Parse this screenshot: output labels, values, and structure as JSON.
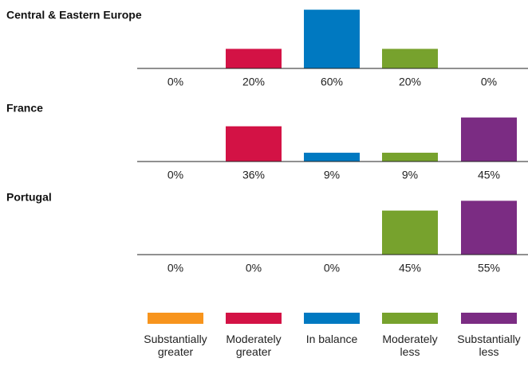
{
  "chart_data": [
    {
      "type": "bar",
      "title": "Central & Eastern Europe",
      "values": [
        0,
        20,
        60,
        20,
        0
      ],
      "value_labels": [
        "0%",
        "20%",
        "60%",
        "20%",
        "0%"
      ]
    },
    {
      "type": "bar",
      "title": "France",
      "values": [
        0,
        36,
        9,
        9,
        45
      ],
      "value_labels": [
        "0%",
        "36%",
        "9%",
        "9%",
        "45%"
      ]
    },
    {
      "type": "bar",
      "title": "Portugal",
      "values": [
        0,
        0,
        0,
        45,
        55
      ],
      "value_labels": [
        "0%",
        "0%",
        "0%",
        "45%",
        "55%"
      ]
    }
  ],
  "legend": {
    "labels": [
      "Substantially greater",
      "Moderately greater",
      "In balance",
      "Moderately less",
      "Substantially less"
    ],
    "colors": [
      "#f7941d",
      "#d31245",
      "#0079c1",
      "#77a22d",
      "#7b2c83"
    ]
  }
}
